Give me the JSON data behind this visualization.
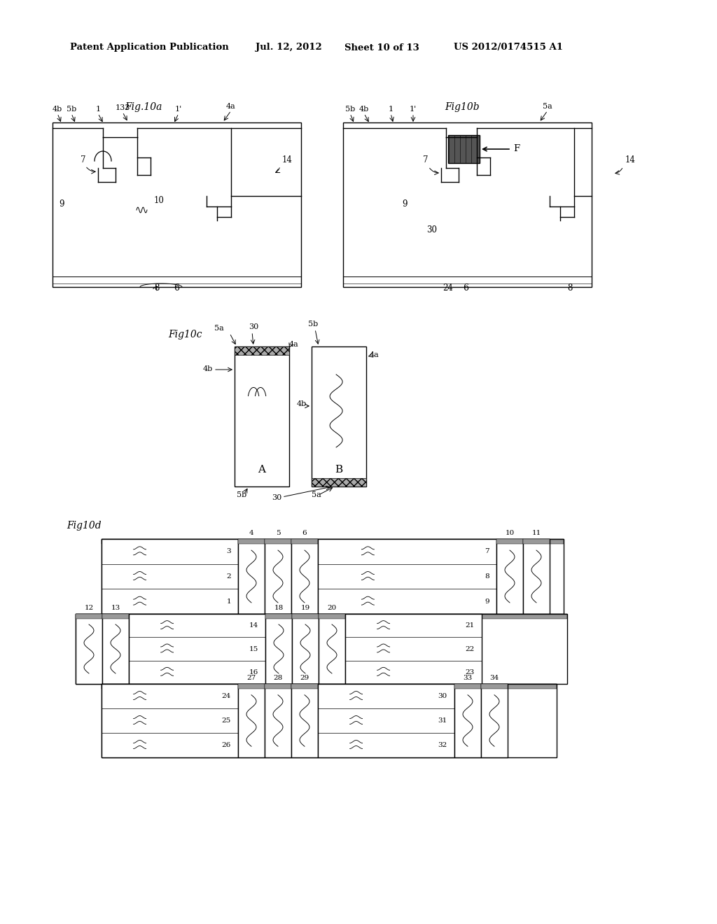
{
  "bg_color": "#ffffff",
  "header_text": "Patent Application Publication",
  "header_date": "Jul. 12, 2012",
  "header_sheet": "Sheet 10 of 13",
  "header_patent": "US 2012/0174515 A1"
}
